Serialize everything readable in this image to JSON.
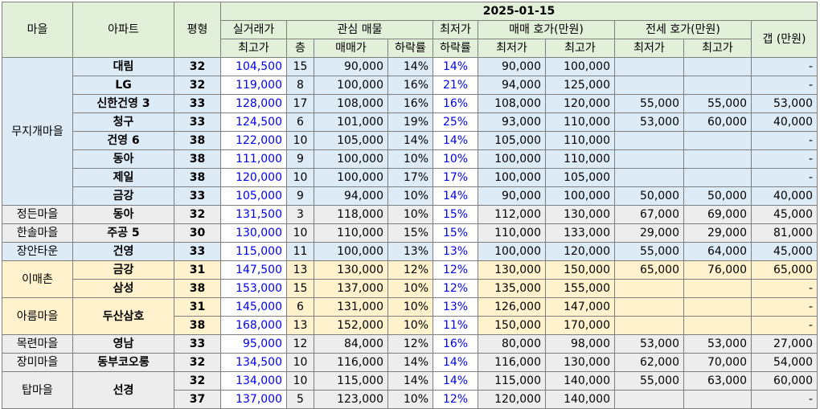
{
  "header": {
    "village": "마을",
    "apartment": "아파트",
    "pyeong": "평형",
    "date": "2025-01-15",
    "actual_top1": "실거래가",
    "actual_top2": "최고가",
    "interest": "관심 매물",
    "floor": "층",
    "price": "매매가",
    "drop": "하락률",
    "lowest_drop1": "최저가",
    "lowest_drop2": "하락률",
    "sale_ask": "매매 호가(만원)",
    "lease_ask": "전세 호가(만원)",
    "min": "최저가",
    "max": "최고가",
    "gap": "갭 (만원)"
  },
  "groups": [
    {
      "village": "무지개마을",
      "color": "#ddebf7",
      "rows": [
        {
          "apt": "대림",
          "py": "32",
          "top": "104,500",
          "floor": "15",
          "price": "90,000",
          "drop": "14%",
          "ldrop": "14%",
          "smin": "90,000",
          "smax": "100,000",
          "lmin": "",
          "lmax": "",
          "gap": "-"
        },
        {
          "apt": "LG",
          "py": "32",
          "top": "119,000",
          "floor": "8",
          "price": "100,000",
          "drop": "16%",
          "ldrop": "21%",
          "smin": "94,000",
          "smax": "125,000",
          "lmin": "",
          "lmax": "",
          "gap": "-"
        },
        {
          "apt": "신한건영 3",
          "py": "33",
          "top": "128,000",
          "floor": "17",
          "price": "108,000",
          "drop": "16%",
          "ldrop": "16%",
          "smin": "108,000",
          "smax": "120,000",
          "lmin": "55,000",
          "lmax": "55,000",
          "gap": "53,000"
        },
        {
          "apt": "청구",
          "py": "33",
          "top": "124,500",
          "floor": "6",
          "price": "101,000",
          "drop": "19%",
          "ldrop": "25%",
          "smin": "93,000",
          "smax": "110,000",
          "lmin": "53,000",
          "lmax": "60,000",
          "gap": "40,000"
        },
        {
          "apt": "건영 6",
          "py": "38",
          "top": "122,000",
          "floor": "10",
          "price": "105,000",
          "drop": "14%",
          "ldrop": "14%",
          "smin": "105,000",
          "smax": "110,000",
          "lmin": "",
          "lmax": "",
          "gap": "-"
        },
        {
          "apt": "동아",
          "py": "38",
          "top": "111,000",
          "floor": "9",
          "price": "100,000",
          "drop": "10%",
          "ldrop": "10%",
          "smin": "100,000",
          "smax": "110,000",
          "lmin": "",
          "lmax": "",
          "gap": "-"
        },
        {
          "apt": "제일",
          "py": "38",
          "top": "120,000",
          "floor": "10",
          "price": "100,000",
          "drop": "17%",
          "ldrop": "17%",
          "smin": "100,000",
          "smax": "105,000",
          "lmin": "",
          "lmax": "",
          "gap": "-"
        },
        {
          "apt": "금강",
          "py": "33",
          "top": "105,000",
          "floor": "9",
          "price": "94,000",
          "drop": "10%",
          "ldrop": "14%",
          "smin": "90,000",
          "smax": "100,000",
          "lmin": "50,000",
          "lmax": "50,000",
          "gap": "40,000"
        }
      ]
    },
    {
      "village": "정든마을",
      "color": "#ededed",
      "rows": [
        {
          "apt": "동아",
          "py": "32",
          "top": "131,500",
          "floor": "3",
          "price": "118,000",
          "drop": "10%",
          "ldrop": "15%",
          "smin": "112,000",
          "smax": "130,000",
          "lmin": "67,000",
          "lmax": "69,000",
          "gap": "45,000"
        }
      ]
    },
    {
      "village": "한솔마을",
      "color": "#ededed",
      "rows": [
        {
          "apt": "주공 5",
          "py": "30",
          "top": "130,000",
          "floor": "10",
          "price": "110,000",
          "drop": "15%",
          "ldrop": "15%",
          "smin": "110,000",
          "smax": "133,000",
          "lmin": "29,000",
          "lmax": "29,000",
          "gap": "81,000"
        }
      ]
    },
    {
      "village": "장안타운",
      "color": "#ddebf7",
      "rows": [
        {
          "apt": "건영",
          "py": "33",
          "top": "115,000",
          "floor": "11",
          "price": "100,000",
          "drop": "13%",
          "ldrop": "13%",
          "smin": "100,000",
          "smax": "120,000",
          "lmin": "55,000",
          "lmax": "64,000",
          "gap": "45,000"
        }
      ]
    },
    {
      "village": "이매촌",
      "color": "#fff2cc",
      "rows": [
        {
          "apt": "금강",
          "py": "31",
          "top": "147,500",
          "floor": "13",
          "price": "130,000",
          "drop": "12%",
          "ldrop": "12%",
          "smin": "130,000",
          "smax": "150,000",
          "lmin": "65,000",
          "lmax": "76,000",
          "gap": "65,000"
        },
        {
          "apt": "삼성",
          "py": "38",
          "top": "153,000",
          "floor": "15",
          "price": "137,000",
          "drop": "10%",
          "ldrop": "12%",
          "smin": "135,000",
          "smax": "155,000",
          "lmin": "",
          "lmax": "",
          "gap": "-"
        }
      ]
    },
    {
      "village": "아름마을",
      "color": "#fff2cc",
      "rows": [
        {
          "apt": "두산삼호",
          "py": "31",
          "top": "145,000",
          "floor": "6",
          "price": "131,000",
          "drop": "10%",
          "ldrop": "13%",
          "smin": "126,000",
          "smax": "147,000",
          "lmin": "",
          "lmax": "",
          "gap": "-"
        },
        {
          "apt": "",
          "py": "38",
          "top": "168,000",
          "floor": "13",
          "price": "152,000",
          "drop": "10%",
          "ldrop": "11%",
          "smin": "150,000",
          "smax": "170,000",
          "lmin": "",
          "lmax": "",
          "gap": "-"
        }
      ]
    },
    {
      "village": "목련마을",
      "color": "#ededed",
      "rows": [
        {
          "apt": "영남",
          "py": "33",
          "top": "95,000",
          "floor": "12",
          "price": "84,000",
          "drop": "12%",
          "ldrop": "16%",
          "smin": "80,000",
          "smax": "98,000",
          "lmin": "53,000",
          "lmax": "53,000",
          "gap": "27,000"
        }
      ]
    },
    {
      "village": "장미마을",
      "color": "#ededed",
      "rows": [
        {
          "apt": "동부코오롱",
          "py": "32",
          "top": "134,500",
          "floor": "10",
          "price": "116,000",
          "drop": "14%",
          "ldrop": "14%",
          "smin": "116,000",
          "smax": "130,000",
          "lmin": "62,000",
          "lmax": "70,000",
          "gap": "54,000"
        }
      ]
    },
    {
      "village": "탑마을",
      "color": "#ededed",
      "rows": [
        {
          "apt": "선경",
          "py": "32",
          "top": "134,000",
          "floor": "10",
          "price": "115,000",
          "drop": "14%",
          "ldrop": "14%",
          "smin": "115,000",
          "smax": "140,000",
          "lmin": "55,000",
          "lmax": "63,000",
          "gap": "60,000"
        },
        {
          "apt": "",
          "py": "37",
          "top": "137,000",
          "floor": "5",
          "price": "123,000",
          "drop": "10%",
          "ldrop": "12%",
          "smin": "120,000",
          "smax": "140,000",
          "lmin": "",
          "lmax": "",
          "gap": "-"
        }
      ]
    }
  ]
}
